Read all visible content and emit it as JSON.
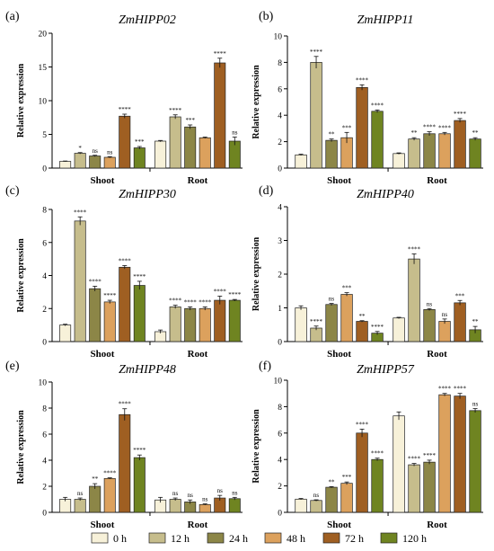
{
  "legend": [
    {
      "label": "0 h",
      "color": "#f7f1d9"
    },
    {
      "label": "12 h",
      "color": "#c6bd8c"
    },
    {
      "label": "24 h",
      "color": "#8c8647"
    },
    {
      "label": "48 h",
      "color": "#dca15d"
    },
    {
      "label": "72 h",
      "color": "#9f5f22"
    },
    {
      "label": "120 h",
      "color": "#6f8421"
    }
  ],
  "chart_data": [
    {
      "panel": "(a)",
      "title": "ZmHIPP02",
      "type": "bar",
      "ylabel": "Relative expression",
      "ylim": [
        0,
        20
      ],
      "yticks": [
        0,
        5,
        10,
        15,
        20
      ],
      "categories": [
        "Shoot",
        "Root"
      ],
      "series": [
        {
          "name": "0 h",
          "values": [
            1.0,
            4.0
          ],
          "errors": [
            0.05,
            0.1
          ],
          "sig": [
            "",
            ""
          ]
        },
        {
          "name": "12 h",
          "values": [
            2.2,
            7.6
          ],
          "errors": [
            0.1,
            0.3
          ],
          "sig": [
            "*",
            "****"
          ]
        },
        {
          "name": "24 h",
          "values": [
            1.8,
            6.1
          ],
          "errors": [
            0.1,
            0.3
          ],
          "sig": [
            "ns",
            "***"
          ]
        },
        {
          "name": "48 h",
          "values": [
            1.6,
            4.5
          ],
          "errors": [
            0.1,
            0.1
          ],
          "sig": [
            "ns",
            ""
          ]
        },
        {
          "name": "72 h",
          "values": [
            7.7,
            15.6
          ],
          "errors": [
            0.3,
            0.7
          ],
          "sig": [
            "****",
            "****"
          ]
        },
        {
          "name": "120 h",
          "values": [
            3.0,
            4.0
          ],
          "errors": [
            0.2,
            0.6
          ],
          "sig": [
            "***",
            "ns"
          ]
        }
      ]
    },
    {
      "panel": "(b)",
      "title": "ZmHIPP11",
      "type": "bar",
      "ylabel": "Relative expression",
      "ylim": [
        0,
        10
      ],
      "yticks": [
        0,
        2,
        4,
        6,
        8,
        10
      ],
      "categories": [
        "Shoot",
        "Root"
      ],
      "series": [
        {
          "name": "0 h",
          "values": [
            1.0,
            1.1
          ],
          "errors": [
            0.05,
            0.05
          ],
          "sig": [
            "",
            ""
          ]
        },
        {
          "name": "12 h",
          "values": [
            8.0,
            2.2
          ],
          "errors": [
            0.45,
            0.1
          ],
          "sig": [
            "****",
            "**"
          ]
        },
        {
          "name": "24 h",
          "values": [
            2.1,
            2.6
          ],
          "errors": [
            0.1,
            0.15
          ],
          "sig": [
            "**",
            "****"
          ]
        },
        {
          "name": "48 h",
          "values": [
            2.3,
            2.6
          ],
          "errors": [
            0.4,
            0.1
          ],
          "sig": [
            "***",
            "****"
          ]
        },
        {
          "name": "72 h",
          "values": [
            6.1,
            3.6
          ],
          "errors": [
            0.2,
            0.15
          ],
          "sig": [
            "****",
            "****"
          ]
        },
        {
          "name": "120 h",
          "values": [
            4.3,
            2.2
          ],
          "errors": [
            0.1,
            0.1
          ],
          "sig": [
            "****",
            "**"
          ]
        }
      ]
    },
    {
      "panel": "(c)",
      "title": "ZmHIPP30",
      "type": "bar",
      "ylabel": "Relative expression",
      "ylim": [
        0,
        8
      ],
      "yticks": [
        0,
        2,
        4,
        6,
        8
      ],
      "categories": [
        "Shoot",
        "Root"
      ],
      "series": [
        {
          "name": "0 h",
          "values": [
            1.0,
            0.6
          ],
          "errors": [
            0.05,
            0.1
          ],
          "sig": [
            "",
            ""
          ]
        },
        {
          "name": "12 h",
          "values": [
            7.3,
            2.1
          ],
          "errors": [
            0.25,
            0.1
          ],
          "sig": [
            "****",
            "****"
          ]
        },
        {
          "name": "24 h",
          "values": [
            3.2,
            2.0
          ],
          "errors": [
            0.15,
            0.1
          ],
          "sig": [
            "****",
            "****"
          ]
        },
        {
          "name": "48 h",
          "values": [
            2.4,
            2.0
          ],
          "errors": [
            0.1,
            0.1
          ],
          "sig": [
            "****",
            "****"
          ]
        },
        {
          "name": "72 h",
          "values": [
            4.5,
            2.5
          ],
          "errors": [
            0.1,
            0.25
          ],
          "sig": [
            "****",
            "****"
          ]
        },
        {
          "name": "120 h",
          "values": [
            3.4,
            2.5
          ],
          "errors": [
            0.25,
            0.05
          ],
          "sig": [
            "****",
            "****"
          ]
        }
      ]
    },
    {
      "panel": "(d)",
      "title": "ZmHIPP40",
      "type": "bar",
      "ylabel": "Relative expression",
      "ylim": [
        0,
        4
      ],
      "yticks": [
        0,
        1,
        2,
        3,
        4
      ],
      "categories": [
        "Shoot",
        "Root"
      ],
      "series": [
        {
          "name": "0 h",
          "values": [
            1.0,
            0.7
          ],
          "errors": [
            0.06,
            0.02
          ],
          "sig": [
            "",
            ""
          ]
        },
        {
          "name": "12 h",
          "values": [
            0.4,
            2.45
          ],
          "errors": [
            0.06,
            0.15
          ],
          "sig": [
            "****",
            "****"
          ]
        },
        {
          "name": "24 h",
          "values": [
            1.1,
            0.95
          ],
          "errors": [
            0.03,
            0.03
          ],
          "sig": [
            "ns",
            "ns"
          ]
        },
        {
          "name": "48 h",
          "values": [
            1.4,
            0.6
          ],
          "errors": [
            0.05,
            0.07
          ],
          "sig": [
            "***",
            "ns"
          ]
        },
        {
          "name": "72 h",
          "values": [
            0.6,
            1.15
          ],
          "errors": [
            0.02,
            0.07
          ],
          "sig": [
            "**",
            "***"
          ]
        },
        {
          "name": "120 h",
          "values": [
            0.25,
            0.35
          ],
          "errors": [
            0.05,
            0.1
          ],
          "sig": [
            "****",
            "**"
          ]
        }
      ]
    },
    {
      "panel": "(e)",
      "title": "ZmHIPP48",
      "type": "bar",
      "ylabel": "Relative expression",
      "ylim": [
        0,
        10
      ],
      "yticks": [
        0,
        2,
        4,
        6,
        8,
        10
      ],
      "categories": [
        "Shoot",
        "Root"
      ],
      "series": [
        {
          "name": "0 h",
          "values": [
            1.0,
            0.95
          ],
          "errors": [
            0.15,
            0.2
          ],
          "sig": [
            "",
            ""
          ]
        },
        {
          "name": "12 h",
          "values": [
            1.0,
            1.0
          ],
          "errors": [
            0.1,
            0.1
          ],
          "sig": [
            "ns",
            "ns"
          ]
        },
        {
          "name": "24 h",
          "values": [
            2.0,
            0.8
          ],
          "errors": [
            0.2,
            0.15
          ],
          "sig": [
            "**",
            "ns"
          ]
        },
        {
          "name": "48 h",
          "values": [
            2.6,
            0.6
          ],
          "errors": [
            0.05,
            0.05
          ],
          "sig": [
            "****",
            "ns"
          ]
        },
        {
          "name": "72 h",
          "values": [
            7.5,
            1.1
          ],
          "errors": [
            0.45,
            0.2
          ],
          "sig": [
            "****",
            "ns"
          ]
        },
        {
          "name": "120 h",
          "values": [
            4.2,
            1.05
          ],
          "errors": [
            0.2,
            0.1
          ],
          "sig": [
            "****",
            "ns"
          ]
        }
      ]
    },
    {
      "panel": "(f)",
      "title": "ZmHIPP57",
      "type": "bar",
      "ylabel": "Relative expression",
      "ylim": [
        0,
        10
      ],
      "yticks": [
        0,
        2,
        4,
        6,
        8,
        10
      ],
      "categories": [
        "Shoot",
        "Root"
      ],
      "series": [
        {
          "name": "0 h",
          "values": [
            1.0,
            7.3
          ],
          "errors": [
            0.05,
            0.3
          ],
          "sig": [
            "",
            ""
          ]
        },
        {
          "name": "12 h",
          "values": [
            0.9,
            3.6
          ],
          "errors": [
            0.05,
            0.1
          ],
          "sig": [
            "ns",
            "****"
          ]
        },
        {
          "name": "24 h",
          "values": [
            1.9,
            3.8
          ],
          "errors": [
            0.05,
            0.15
          ],
          "sig": [
            "**",
            "****"
          ]
        },
        {
          "name": "48 h",
          "values": [
            2.2,
            8.9
          ],
          "errors": [
            0.1,
            0.1
          ],
          "sig": [
            "***",
            "****"
          ]
        },
        {
          "name": "72 h",
          "values": [
            6.0,
            8.8
          ],
          "errors": [
            0.3,
            0.2
          ],
          "sig": [
            "****",
            "****"
          ]
        },
        {
          "name": "120 h",
          "values": [
            4.0,
            7.7
          ],
          "errors": [
            0.1,
            0.15
          ],
          "sig": [
            "****",
            "ns"
          ]
        }
      ]
    }
  ]
}
